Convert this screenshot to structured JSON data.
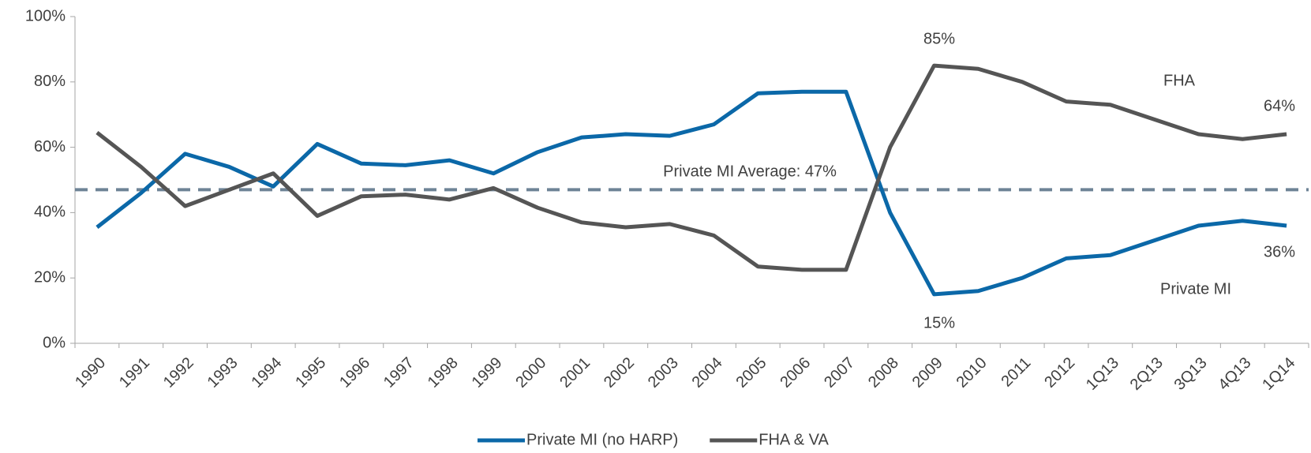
{
  "chart_data": {
    "type": "line",
    "categories": [
      "1990",
      "1991",
      "1992",
      "1993",
      "1994",
      "1995",
      "1996",
      "1997",
      "1998",
      "1999",
      "2000",
      "2001",
      "2002",
      "2003",
      "2004",
      "2005",
      "2006",
      "2007",
      "2008",
      "2009",
      "2010",
      "2011",
      "2012",
      "1Q13",
      "2Q13",
      "3Q13",
      "4Q13",
      "1Q14"
    ],
    "series": [
      {
        "name": "Private MI (no HARP)",
        "color": "#0b68a8",
        "values": [
          35.5,
          46,
          58,
          54,
          48,
          61,
          55,
          54.5,
          56,
          52,
          58.5,
          63,
          64,
          63.5,
          67,
          76.5,
          77,
          77,
          40,
          15,
          16,
          20,
          26,
          27,
          31.5,
          36,
          37.5,
          36
        ]
      },
      {
        "name": "FHA & VA",
        "color": "#555555",
        "values": [
          64.5,
          54,
          42,
          47,
          52,
          39,
          45,
          45.5,
          44,
          47.5,
          41.5,
          37,
          35.5,
          36.5,
          33,
          23.5,
          22.5,
          22.5,
          60,
          85,
          84,
          80,
          74,
          73,
          68.5,
          64,
          62.5,
          64
        ]
      }
    ],
    "reference_line": {
      "value": 47,
      "label": "Private MI Average: 47%",
      "color": "#6e8396"
    },
    "annotations": [
      "85%",
      "64%",
      "15%",
      "36%",
      "FHA",
      "Private MI"
    ],
    "ylim": [
      0,
      100
    ],
    "yticks": [
      {
        "value": 0,
        "label": "0%"
      },
      {
        "value": 20,
        "label": "20%"
      },
      {
        "value": 40,
        "label": "40%"
      },
      {
        "value": 60,
        "label": "60%"
      },
      {
        "value": 80,
        "label": "80%"
      },
      {
        "value": 100,
        "label": "100%"
      }
    ],
    "grid": false,
    "legend": "bottom"
  }
}
